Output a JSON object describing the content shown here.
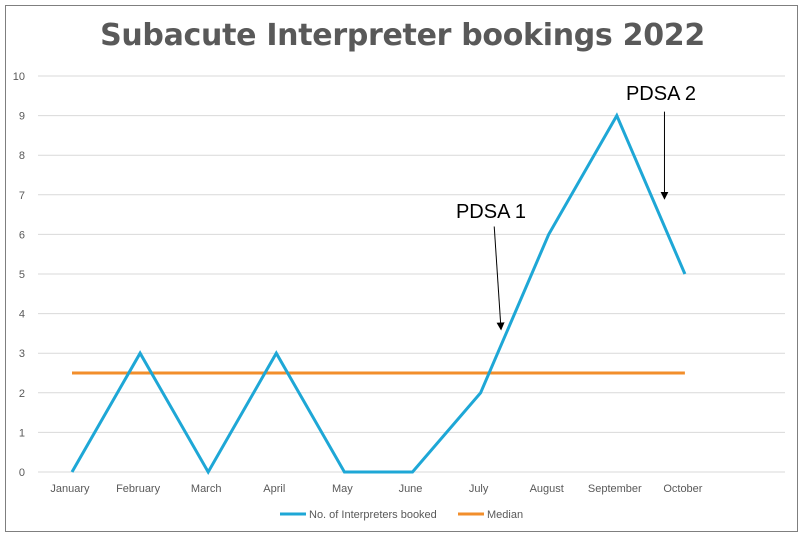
{
  "chart_data": {
    "type": "line",
    "title": "Subacute Interpreter bookings 2022",
    "categories": [
      "January",
      "February",
      "March",
      "April",
      "May",
      "June",
      "July",
      "August",
      "September",
      "October"
    ],
    "series": [
      {
        "name": "No. of Interpreters booked",
        "values": [
          0,
          3,
          0,
          3,
          0,
          0,
          2,
          6,
          9,
          5
        ],
        "color": "#1ea7d6"
      },
      {
        "name": "Median",
        "values": [
          2.5,
          2.5,
          2.5,
          2.5,
          2.5,
          2.5,
          2.5,
          2.5,
          2.5,
          2.5
        ],
        "color": "#f28e2b"
      }
    ],
    "ylim": [
      0,
      10
    ],
    "yticks": [
      0,
      1,
      2,
      3,
      4,
      5,
      6,
      7,
      8,
      9,
      10
    ],
    "grid": true,
    "legend": "bottom",
    "annotations": [
      {
        "text": "PDSA 1",
        "category": "July",
        "arrow_from": [
          6.2,
          6.2
        ],
        "arrow_to": [
          6.3,
          3.6
        ]
      },
      {
        "text": "PDSA 2",
        "category": "September",
        "arrow_from": [
          8.7,
          9.1
        ],
        "arrow_to": [
          8.7,
          6.9
        ]
      }
    ]
  }
}
